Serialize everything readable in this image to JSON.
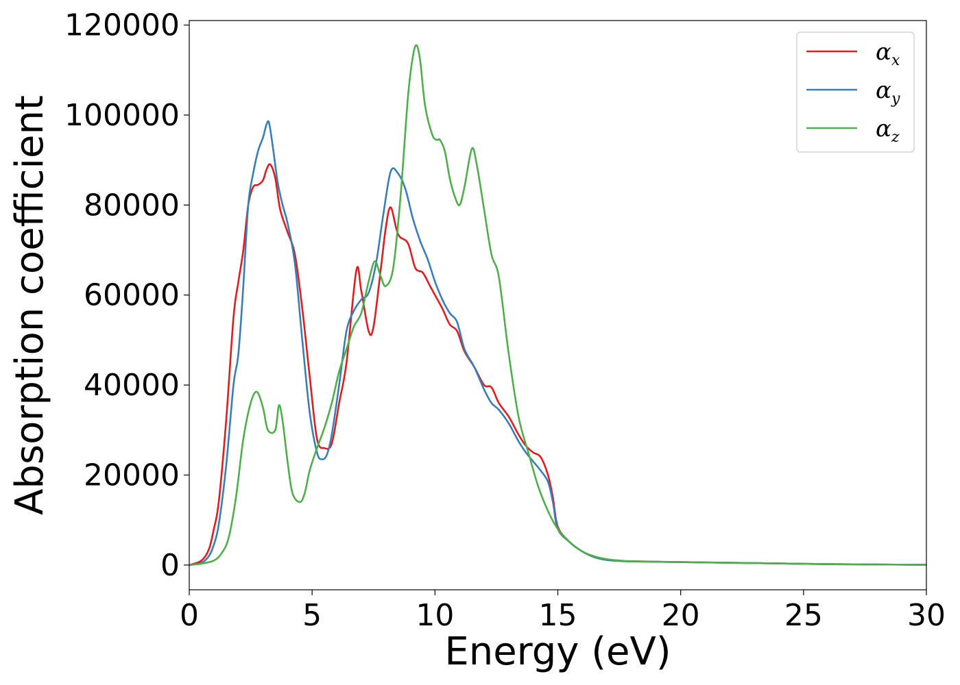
{
  "chart_data": {
    "type": "line",
    "xlabel": "Energy (eV)",
    "ylabel": "Absorption coefficient",
    "xlim": [
      0,
      30
    ],
    "ylim": [
      -5500,
      121000
    ],
    "xticks": [
      0,
      5,
      10,
      15,
      20,
      25,
      30
    ],
    "yticks": [
      0,
      20000,
      40000,
      60000,
      80000,
      100000,
      120000
    ],
    "grid": false,
    "legend_position": "top-right",
    "series": [
      {
        "name": "α_x",
        "legend_base": "α",
        "legend_sub": "x",
        "color": "#e41a1c",
        "x": [
          0,
          0.5,
          0.8,
          1.0,
          1.2,
          1.5,
          1.8,
          2.0,
          2.2,
          2.4,
          2.6,
          2.8,
          3.0,
          3.15,
          3.3,
          3.5,
          3.7,
          4.0,
          4.3,
          4.6,
          4.9,
          5.2,
          5.5,
          5.8,
          6.1,
          6.4,
          6.8,
          7.0,
          7.3,
          7.5,
          7.8,
          8.0,
          8.2,
          8.5,
          8.9,
          9.2,
          9.5,
          9.8,
          10.0,
          10.3,
          10.6,
          10.9,
          11.2,
          11.6,
          12.0,
          12.3,
          12.6,
          13.0,
          13.4,
          13.7,
          14.0,
          14.3,
          14.6,
          14.8,
          15.0,
          15.5,
          16.0,
          16.5,
          17.0,
          17.5,
          18.0,
          20.0,
          22.0,
          24.0,
          26.0,
          28.0,
          30.0
        ],
        "values": [
          0,
          1000,
          3500,
          8000,
          14000,
          32000,
          55000,
          63000,
          70000,
          80000,
          84000,
          84500,
          85500,
          88000,
          89000,
          86000,
          79000,
          74000,
          69000,
          57000,
          42000,
          28000,
          26000,
          27000,
          36000,
          45000,
          65500,
          61000,
          52000,
          53000,
          66000,
          75000,
          79500,
          73500,
          71500,
          66000,
          65000,
          62000,
          60000,
          57000,
          53500,
          52000,
          47500,
          44000,
          40000,
          39500,
          36000,
          33000,
          29000,
          26500,
          25000,
          24000,
          20000,
          15000,
          8500,
          5000,
          3000,
          1800,
          1200,
          1000,
          850,
          650,
          500,
          350,
          200,
          120,
          50
        ]
      },
      {
        "name": "α_y",
        "legend_base": "α",
        "legend_sub": "y",
        "color": "#377eb8",
        "x": [
          0,
          0.5,
          0.8,
          1.0,
          1.2,
          1.5,
          1.8,
          2.0,
          2.2,
          2.4,
          2.6,
          2.8,
          3.0,
          3.15,
          3.25,
          3.4,
          3.6,
          3.8,
          4.0,
          4.3,
          4.6,
          4.9,
          5.2,
          5.4,
          5.6,
          5.8,
          6.1,
          6.4,
          6.7,
          7.0,
          7.3,
          7.6,
          7.9,
          8.2,
          8.5,
          8.8,
          9.1,
          9.4,
          9.7,
          10.0,
          10.3,
          10.6,
          10.9,
          11.2,
          11.6,
          12.0,
          12.3,
          12.6,
          13.0,
          13.4,
          13.7,
          14.0,
          14.3,
          14.6,
          14.8,
          15.0,
          15.5,
          16.0,
          16.5,
          17.0,
          17.5,
          18.0,
          20.0,
          22.0,
          24.0,
          26.0,
          28.0,
          30.0
        ],
        "values": [
          0,
          500,
          2000,
          4500,
          9000,
          22000,
          40000,
          47000,
          62000,
          80000,
          87000,
          92000,
          95000,
          98000,
          98200,
          93000,
          85000,
          80000,
          76000,
          67000,
          50000,
          34000,
          25000,
          23500,
          24500,
          29000,
          40000,
          52000,
          56500,
          59000,
          60500,
          67000,
          78000,
          87500,
          87000,
          83500,
          77000,
          72000,
          68000,
          63000,
          59000,
          56000,
          54000,
          48000,
          44000,
          39000,
          36000,
          34500,
          31500,
          27500,
          25000,
          23000,
          21000,
          18500,
          14000,
          8000,
          5000,
          3000,
          1700,
          1100,
          900,
          800,
          650,
          500,
          350,
          200,
          120,
          50
        ]
      },
      {
        "name": "α_z",
        "legend_base": "α",
        "legend_sub": "z",
        "color": "#4daf4a",
        "x": [
          0,
          0.5,
          1.0,
          1.3,
          1.6,
          1.9,
          2.2,
          2.5,
          2.75,
          3.0,
          3.2,
          3.5,
          3.65,
          3.8,
          4.0,
          4.2,
          4.5,
          4.7,
          4.9,
          5.2,
          5.5,
          5.8,
          6.1,
          6.4,
          6.7,
          7.0,
          7.3,
          7.55,
          7.8,
          8.0,
          8.3,
          8.6,
          8.9,
          9.1,
          9.25,
          9.4,
          9.6,
          9.9,
          10.1,
          10.2,
          10.4,
          10.6,
          10.8,
          11.0,
          11.2,
          11.5,
          11.7,
          12.0,
          12.3,
          12.6,
          13.0,
          13.4,
          13.8,
          14.2,
          14.6,
          15.0,
          15.5,
          16.0,
          16.5,
          17.0,
          17.5,
          18.0,
          20.0,
          22.0,
          24.0,
          26.0,
          28.0,
          30.0
        ],
        "values": [
          0,
          300,
          1000,
          2500,
          6000,
          15000,
          28000,
          36000,
          38500,
          35000,
          30000,
          30000,
          35500,
          32000,
          23000,
          16000,
          14000,
          16000,
          21000,
          26000,
          30500,
          36000,
          43000,
          48000,
          53000,
          56000,
          63000,
          67500,
          64000,
          62000,
          66000,
          82000,
          104000,
          113000,
          115500,
          112000,
          102000,
          95500,
          94500,
          94500,
          92000,
          86000,
          82000,
          80000,
          84000,
          92500,
          89000,
          79000,
          69000,
          64000,
          47000,
          33000,
          25000,
          17500,
          12000,
          8000,
          5000,
          3000,
          1900,
          1300,
          1000,
          800,
          650,
          500,
          350,
          200,
          120,
          50
        ]
      }
    ]
  }
}
